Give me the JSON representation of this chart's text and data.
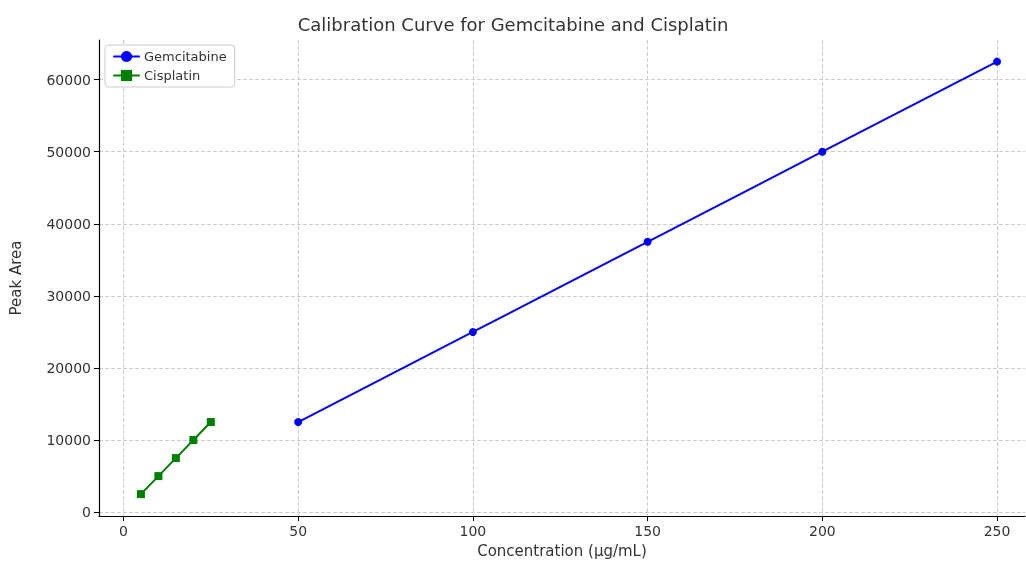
{
  "chart_data": {
    "type": "line",
    "title": "Calibration Curve for Gemcitabine and Cisplatin",
    "xlabel": "Concentration (µg/mL)",
    "ylabel": "Peak Area",
    "series": [
      {
        "name": "Gemcitabine",
        "color": "#0000ff",
        "marker": "circle",
        "x": [
          50,
          100,
          150,
          200,
          250
        ],
        "values": [
          12500,
          25000,
          37500,
          50000,
          62500
        ]
      },
      {
        "name": "Cisplatin",
        "color": "#008000",
        "marker": "square",
        "x": [
          5,
          10,
          15,
          20,
          25
        ],
        "values": [
          2500,
          5000,
          7500,
          10000,
          12500
        ]
      }
    ],
    "xlim": [
      -7,
      258
    ],
    "xticks": [
      0,
      50,
      100,
      150,
      200,
      250
    ],
    "ylim": [
      -550,
      65500
    ],
    "yticks": [
      0,
      10000,
      20000,
      30000,
      40000,
      50000,
      60000
    ],
    "grid": true,
    "legend": "top left",
    "line_style": "solid"
  }
}
